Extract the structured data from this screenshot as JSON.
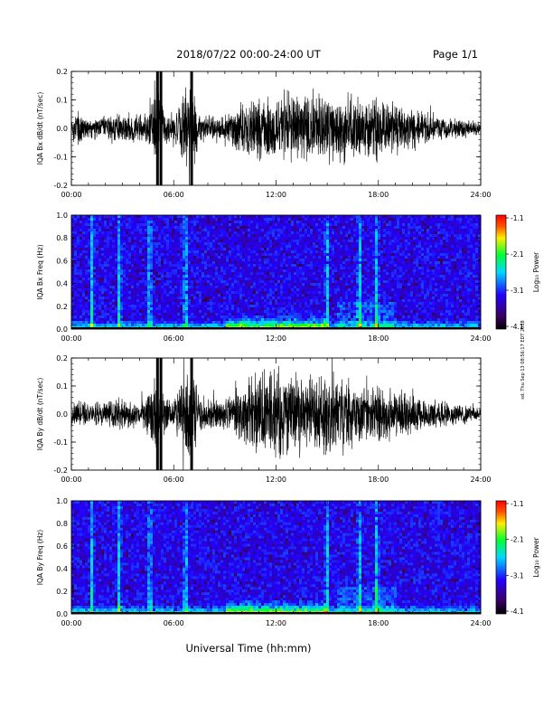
{
  "header": {
    "date_range": "2018/07/22  00:00-24:00 UT",
    "page": "Page 1/1"
  },
  "footer": {
    "xlabel": "Universal Time (hh:mm)"
  },
  "side_note": "sd: Thu Sep 13 08:56:17 EDT 2018",
  "time_ticks": [
    "00:00",
    "06:00",
    "12:00",
    "18:00",
    "24:00"
  ],
  "colors": {
    "trace": "#000000",
    "colormap": [
      "#000000",
      "#3a0066",
      "#2200ff",
      "#00d8ff",
      "#00ff33",
      "#ffee00",
      "#ff5500",
      "#ff0000"
    ]
  },
  "chart_data": [
    {
      "type": "line",
      "ylabel": "IQA Bx dB/dt (nT/sec)",
      "x_range": [
        0,
        24
      ],
      "ylim": [
        -0.2,
        0.2
      ],
      "yticks": [
        "0.2",
        "0.1",
        "0.0",
        "-0.1",
        "-0.2"
      ],
      "envelope": {
        "x_hours": [
          0,
          0.5,
          1,
          2,
          3,
          4,
          4.5,
          5,
          5.5,
          6,
          7,
          7.5,
          8,
          9,
          10,
          11,
          12,
          13,
          14,
          15,
          16,
          17,
          18,
          19,
          20,
          21,
          22,
          23,
          24
        ],
        "amplitude": [
          0.05,
          0.08,
          0.04,
          0.05,
          0.06,
          0.05,
          0.08,
          0.2,
          0.06,
          0.05,
          0.2,
          0.06,
          0.05,
          0.06,
          0.1,
          0.12,
          0.14,
          0.15,
          0.12,
          0.15,
          0.14,
          0.13,
          0.12,
          0.1,
          0.08,
          0.06,
          0.05,
          0.04,
          0.025
        ]
      }
    },
    {
      "type": "heatmap",
      "ylabel": "IQA Bx Freq (Hz)",
      "x_range": [
        0,
        24
      ],
      "ylim": [
        0.0,
        1.0
      ],
      "yticks": [
        "1.0",
        "0.8",
        "0.6",
        "0.4",
        "0.2",
        "0.0"
      ],
      "colorbar": {
        "label": "Log₁₀ Power",
        "ticks": [
          "-1.1",
          "-2.1",
          "-3.1",
          "-4.1"
        ],
        "range": [
          -4.1,
          -1.1
        ]
      },
      "spikes_hours": [
        1.2,
        2.8,
        4.6,
        6.7,
        15.0,
        16.9,
        17.9
      ],
      "enhanced_band_hours": [
        9,
        15
      ]
    },
    {
      "type": "line",
      "ylabel": "IQA By dB/dt (nT/sec)",
      "x_range": [
        0,
        24
      ],
      "ylim": [
        -0.2,
        0.2
      ],
      "yticks": [
        "0.2",
        "0.1",
        "0.0",
        "-0.1",
        "-0.2"
      ],
      "envelope": {
        "x_hours": [
          0,
          0.5,
          1,
          2,
          3,
          4,
          4.5,
          5,
          5.5,
          6,
          7,
          7.5,
          8,
          9,
          10,
          11,
          12,
          13,
          14,
          15,
          16,
          17,
          18,
          19,
          20,
          21,
          22,
          23,
          24
        ],
        "amplitude": [
          0.05,
          0.06,
          0.05,
          0.05,
          0.06,
          0.05,
          0.08,
          0.2,
          0.07,
          0.06,
          0.2,
          0.07,
          0.06,
          0.06,
          0.12,
          0.17,
          0.2,
          0.18,
          0.15,
          0.16,
          0.15,
          0.12,
          0.12,
          0.1,
          0.08,
          0.06,
          0.05,
          0.04,
          0.025
        ]
      }
    },
    {
      "type": "heatmap",
      "ylabel": "IQA By Freq (Hz)",
      "x_range": [
        0,
        24
      ],
      "ylim": [
        0.0,
        1.0
      ],
      "yticks": [
        "1.0",
        "0.8",
        "0.6",
        "0.4",
        "0.2",
        "0.0"
      ],
      "colorbar": {
        "label": "Log₁₀ Power",
        "ticks": [
          "-1.1",
          "-2.1",
          "-3.1",
          "-4.1"
        ],
        "range": [
          -4.1,
          -1.1
        ]
      },
      "spikes_hours": [
        1.2,
        2.8,
        4.6,
        6.7,
        15.0,
        16.9,
        17.9
      ],
      "enhanced_band_hours": [
        9,
        15
      ]
    }
  ]
}
